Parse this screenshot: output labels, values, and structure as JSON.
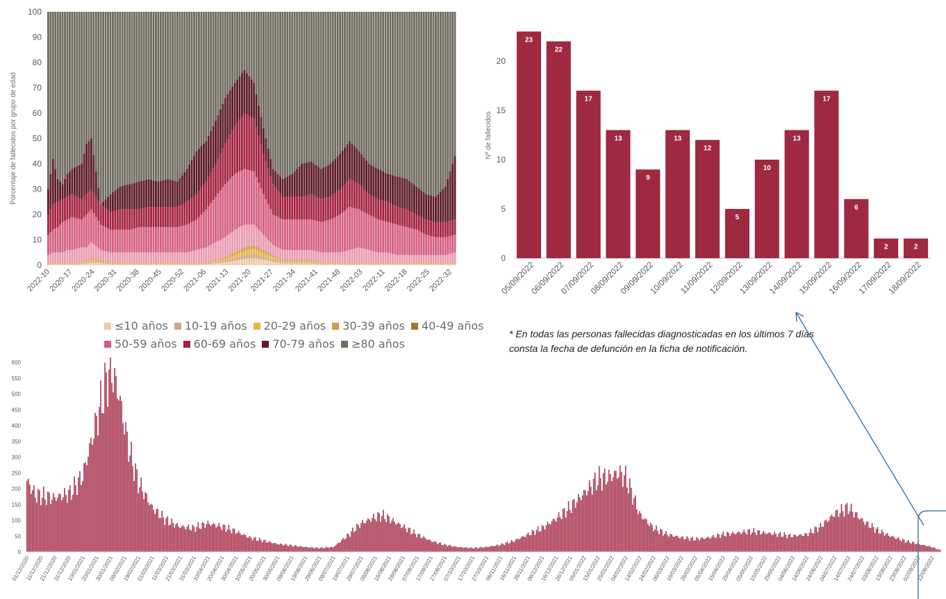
{
  "chart_data": [
    {
      "type": "bar",
      "stacked": true,
      "percent": true,
      "title": "",
      "xlabel": "",
      "ylabel": "Porcentaje de fallecidos por grupo de edad",
      "ylim": [
        0,
        100
      ],
      "yticks": [
        0,
        10,
        20,
        30,
        40,
        50,
        60,
        70,
        80,
        90,
        100
      ],
      "xtick_labels": [
        "2022-10",
        "2020-17",
        "2020-24",
        "2020-31",
        "2020-38",
        "2020-45",
        "2020-52",
        "2021-06",
        "2021-13",
        "2021-20",
        "2021-27",
        "2021-34",
        "2021-41",
        "2021-48",
        "2022-03",
        "2022-11",
        "2022-18",
        "2022-25",
        "2022-32"
      ],
      "legend_position": "bottom",
      "series": [
        {
          "name": "≤10 años",
          "color": "#f2c6a8"
        },
        {
          "name": "10-19 años",
          "color": "#c8a78e"
        },
        {
          "name": "20-29 años",
          "color": "#eab345"
        },
        {
          "name": "30-39 años",
          "color": "#d29a45"
        },
        {
          "name": "40-49 años",
          "color": "#a8742f"
        },
        {
          "name": "50-59 años",
          "color": "#d45e80"
        },
        {
          "name": "60-69 años",
          "color": "#a3213f"
        },
        {
          "name": "70-79 años",
          "color": "#5c1a28"
        },
        {
          "name": "≥80 años",
          "color": "#6e6a5e"
        }
      ],
      "cumulative_pct_points": {
        "x_index": [
          0,
          2,
          4,
          6,
          8,
          10,
          14,
          16,
          18,
          22,
          26,
          30,
          34,
          38,
          42,
          46,
          50,
          54,
          58,
          62,
          66,
          70,
          74,
          78,
          82,
          86,
          90,
          94,
          98,
          102,
          106,
          110,
          114,
          118,
          122,
          126,
          130,
          134,
          138,
          142,
          146,
          150,
          154,
          158,
          162,
          166,
          170
        ],
        "under_40": [
          1,
          1,
          1,
          1,
          1,
          1,
          1,
          2,
          3,
          2,
          1,
          1,
          1,
          1,
          1,
          1,
          1,
          1,
          1,
          1,
          1,
          2,
          3,
          5,
          7,
          8,
          6,
          4,
          2,
          2,
          2,
          2,
          1,
          1,
          1,
          1,
          1,
          1,
          1,
          1,
          1,
          1,
          1,
          1,
          1,
          1,
          1
        ],
        "under_50": [
          4,
          5,
          5,
          5,
          6,
          6,
          7,
          7,
          9,
          6,
          5,
          5,
          5,
          5,
          5,
          5,
          5,
          5,
          5,
          6,
          7,
          9,
          11,
          14,
          16,
          16,
          12,
          8,
          6,
          6,
          6,
          6,
          5,
          5,
          5,
          6,
          7,
          6,
          5,
          5,
          4,
          4,
          4,
          4,
          4,
          4,
          5
        ],
        "under_60": [
          12,
          14,
          15,
          17,
          18,
          19,
          18,
          20,
          22,
          16,
          14,
          14,
          14,
          15,
          15,
          15,
          15,
          15,
          16,
          18,
          22,
          27,
          32,
          36,
          38,
          37,
          28,
          20,
          18,
          18,
          18,
          18,
          17,
          18,
          20,
          23,
          22,
          20,
          18,
          17,
          16,
          15,
          14,
          12,
          11,
          11,
          12
        ],
        "under_70": [
          20,
          24,
          25,
          26,
          27,
          28,
          26,
          28,
          30,
          24,
          21,
          22,
          22,
          22,
          23,
          23,
          23,
          23,
          25,
          28,
          33,
          40,
          48,
          55,
          60,
          58,
          44,
          32,
          27,
          27,
          27,
          28,
          26,
          27,
          30,
          34,
          32,
          28,
          26,
          25,
          23,
          22,
          20,
          18,
          17,
          17,
          18
        ],
        "under_80": [
          30,
          42,
          34,
          32,
          36,
          38,
          40,
          48,
          50,
          24,
          28,
          31,
          32,
          33,
          34,
          33,
          34,
          33,
          38,
          45,
          49,
          57,
          66,
          72,
          77,
          72,
          54,
          38,
          34,
          36,
          40,
          41,
          38,
          40,
          44,
          49,
          45,
          40,
          38,
          36,
          35,
          34,
          31,
          28,
          27,
          31,
          43
        ]
      }
    },
    {
      "type": "bar",
      "title": "",
      "xlabel": "",
      "ylabel": "Nº de fallecidos",
      "ylim": [
        0,
        25
      ],
      "yticks": [
        0,
        5,
        10,
        15,
        20
      ],
      "categories": [
        "05/09/2022",
        "06/09/2022",
        "07/09/2022",
        "08/09/2022",
        "09/09/2022",
        "10/09/2022",
        "11/09/2022",
        "12/09/2022",
        "13/09/2022",
        "14/09/2022",
        "15/09/2022",
        "16/09/2022",
        "17/09/2022",
        "18/09/2022"
      ],
      "values": [
        23,
        22,
        17,
        13,
        9,
        13,
        12,
        5,
        10,
        13,
        17,
        6,
        2,
        2
      ],
      "data_labels": [
        "23",
        "22",
        "17",
        "13",
        "9",
        "13",
        "12",
        "5",
        "10",
        "13",
        "17",
        "6",
        "2",
        "2"
      ],
      "color": "#9e2940"
    },
    {
      "type": "bar",
      "title": "",
      "xlabel": "",
      "ylabel": "",
      "ylim": [
        0,
        600
      ],
      "yticks": [
        0,
        50,
        100,
        150,
        200,
        250,
        300,
        350,
        400,
        450,
        500,
        550,
        600
      ],
      "xtick_labels": [
        "01/12/2020",
        "11/12/2020",
        "21/12/2020",
        "31/12/2020",
        "10/01/2021",
        "20/01/2021",
        "30/01/2021",
        "09/02/2021",
        "19/02/2021",
        "01/03/2021",
        "11/03/2021",
        "21/03/2021",
        "31/03/2021",
        "10/04/2021",
        "20/04/2021",
        "30/04/2021",
        "10/05/2021",
        "20/05/2021",
        "30/05/2021",
        "09/06/2021",
        "19/06/2021",
        "29/06/2021",
        "09/07/2021",
        "19/07/2021",
        "29/07/2021",
        "08/08/2021",
        "18/08/2021",
        "28/08/2021",
        "07/09/2021",
        "17/09/2021",
        "27/09/2021",
        "07/10/2021",
        "17/10/2021",
        "27/10/2021",
        "06/11/2021",
        "16/11/2021",
        "26/11/2021",
        "06/12/2021",
        "16/12/2021",
        "26/12/2021",
        "05/01/2022",
        "15/01/2022",
        "25/01/2022",
        "04/02/2022",
        "14/02/2022",
        "24/02/2022",
        "06/03/2022",
        "16/03/2022",
        "26/03/2022",
        "05/04/2022",
        "15/04/2022",
        "25/04/2022",
        "05/05/2022",
        "15/05/2022",
        "25/05/2022",
        "04/06/2022",
        "14/06/2022",
        "24/06/2022",
        "04/07/2022",
        "14/07/2022",
        "24/07/2022",
        "03/08/2022",
        "13/08/2022",
        "23/08/2022",
        "02/09/2022",
        "12/09/2022"
      ],
      "color": "#a8354f",
      "points": {
        "x": [
          "01/12/2020",
          "07/12/2020",
          "20/12/2020",
          "01/01/2021",
          "10/01/2021",
          "18/01/2021",
          "26/01/2021",
          "30/01/2021",
          "05/02/2021",
          "12/02/2021",
          "19/02/2021",
          "01/03/2021",
          "11/03/2021",
          "21/03/2021",
          "31/03/2021",
          "10/04/2021",
          "20/04/2021",
          "30/04/2021",
          "10/05/2021",
          "20/05/2021",
          "30/05/2021",
          "09/06/2021",
          "19/06/2021",
          "29/06/2021",
          "09/07/2021",
          "19/07/2021",
          "29/07/2021",
          "08/08/2021",
          "13/08/2021",
          "18/08/2021",
          "28/08/2021",
          "07/09/2021",
          "17/09/2021",
          "27/09/2021",
          "07/10/2021",
          "17/10/2021",
          "27/10/2021",
          "06/11/2021",
          "16/11/2021",
          "26/11/2021",
          "06/12/2021",
          "16/12/2021",
          "26/12/2021",
          "05/01/2022",
          "15/01/2022",
          "25/01/2022",
          "30/01/2022",
          "04/02/2022",
          "09/02/2022",
          "14/02/2022",
          "24/02/2022",
          "06/03/2022",
          "16/03/2022",
          "26/03/2022",
          "05/04/2022",
          "15/04/2022",
          "25/04/2022",
          "05/05/2022",
          "15/05/2022",
          "25/05/2022",
          "04/06/2022",
          "14/06/2022",
          "24/06/2022",
          "04/07/2022",
          "14/07/2022",
          "24/07/2022",
          "03/08/2022",
          "13/08/2022",
          "23/08/2022",
          "02/09/2022",
          "12/09/2022",
          "18/09/2022"
        ],
        "y": [
          225,
          180,
          170,
          185,
          240,
          380,
          520,
          585,
          500,
          330,
          220,
          140,
          100,
          80,
          75,
          90,
          80,
          65,
          45,
          35,
          25,
          20,
          15,
          12,
          15,
          50,
          90,
          110,
          115,
          105,
          80,
          55,
          35,
          22,
          15,
          12,
          15,
          22,
          35,
          55,
          75,
          105,
          140,
          185,
          230,
          240,
          250,
          235,
          180,
          120,
          75,
          55,
          45,
          40,
          45,
          55,
          60,
          65,
          60,
          55,
          50,
          55,
          80,
          120,
          140,
          100,
          70,
          50,
          35,
          25,
          15,
          5
        ]
      }
    }
  ],
  "legend": {
    "row1": [
      "≤10 años",
      "10-19 años",
      "20-29 años",
      "30-39 años",
      "40-49 años"
    ],
    "row2": [
      "50-59 años",
      "60-69 años",
      "70-79 años",
      "≥80 años"
    ]
  },
  "note": {
    "line1": "* En todas las personas fallecidas diagnosticadas en los últimos 7 días",
    "line2": "consta la fecha de defunción en la ficha de notificación."
  }
}
